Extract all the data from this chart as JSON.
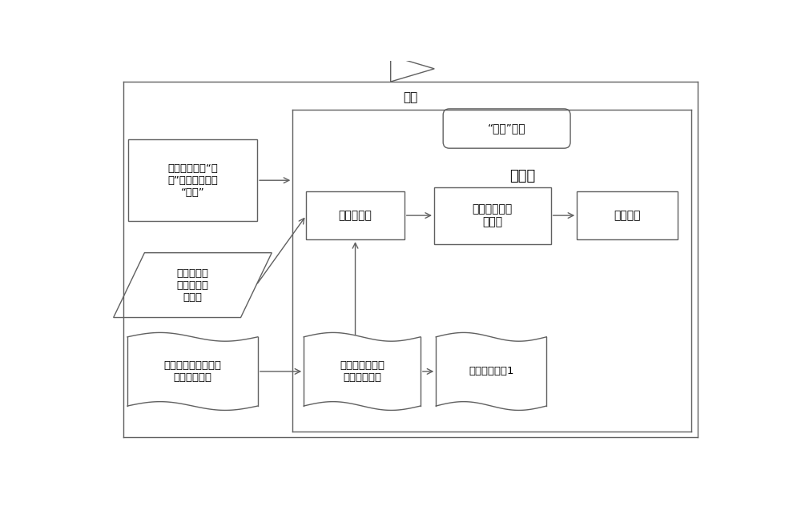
{
  "bg_color": "#ffffff",
  "line_color": "#606060",
  "text_color": "#000000",
  "fig_width": 10.0,
  "fig_height": 6.32,
  "loop_label": "循环",
  "state_machine_label": "状态机",
  "run_state_label": "“运行”状态",
  "box1_label": "由队列中读取“状\n态”决定是否继续\n“运行”",
  "box2_label": "标志位寄存\n器存储标志\n位信息",
  "box3_label": "数据簼为执行单元提\n供校准点信息",
  "box4_label": "脉冲源输出",
  "box5_label": "数字多用表读\n取幅度",
  "box6_label": "数据存储",
  "box7_label": "按标志位信息选\n取当前校准点",
  "box8_label": "标志位信息加1"
}
